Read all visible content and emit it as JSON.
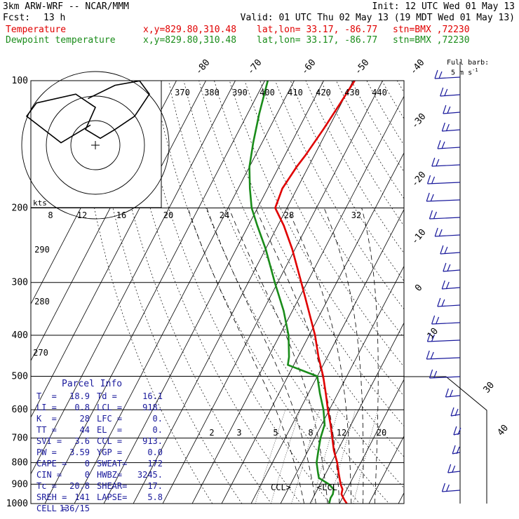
{
  "header": {
    "model": "3km ARW-WRF -- NCAR/MMM",
    "init": "Init: 12 UTC Wed 01 May 13",
    "fcst_label": "Fcst:",
    "fcst_value": "13 h",
    "valid": "Valid: 01 UTC Thu 02 May 13 (19 MDT Wed 01 May 13)",
    "temp_line": {
      "label": "Temperature",
      "xy": "x,y=829.80,310.48",
      "latlon": "lat,lon= 33.17, -86.77",
      "stn": "stn=BMX ,72230"
    },
    "dew_line": {
      "label": "Dewpoint temperature",
      "xy": "x,y=829.80,310.48",
      "latlon": "lat,lon= 33.17, -86.77",
      "stn": "stn=BMX ,72230"
    }
  },
  "colors": {
    "temperature": "#e00000",
    "dewpoint": "#1a8c1a",
    "text": "#000000",
    "parcel_text": "#1a1a9c",
    "wind": "#1a1a9c"
  },
  "barb_legend": {
    "line1": "Full barb:",
    "line2": "5 m s",
    "sup": "-1"
  },
  "hodograph": {
    "unit": "kts",
    "speed_ticks": [
      "8",
      "12",
      "16",
      "20",
      "24",
      "28",
      "32"
    ]
  },
  "theta_labels": [
    "370",
    "380",
    "390",
    "400",
    "410",
    "420",
    "430",
    "440"
  ],
  "theta_left_labels": [
    "290",
    "280",
    "270"
  ],
  "isotherm_labels": [
    "-80",
    "-70",
    "-60",
    "-50",
    "-40",
    "-30",
    "-20",
    "-10",
    "0",
    "10",
    "30",
    "40"
  ],
  "mixing_ratio_labels": [
    "2",
    "3",
    "5",
    "8",
    "12",
    "20"
  ],
  "level_annotations": {
    "ccl": "CCL>",
    "lcl": "<LCL"
  },
  "parcel": {
    "title": "Parcel Info",
    "rows": [
      [
        "T  =",
        "18.9",
        "Td =",
        "16.1"
      ],
      [
        "LI =",
        "0.8",
        "LCL =",
        "918."
      ],
      [
        "K  =",
        "28",
        "LFC =",
        "0."
      ],
      [
        "TT =",
        "44",
        "EL  =",
        "0."
      ],
      [
        "SVI =",
        "3.6",
        "CCL =",
        "913."
      ],
      [
        "PW =",
        "3.59",
        "YGP =",
        "0.0"
      ],
      [
        "CAPE =",
        "0",
        "SWEAT=",
        "172"
      ],
      [
        "CIN =",
        "0",
        "HWBZ=",
        "3245."
      ],
      [
        "Tc =",
        "20.8",
        "SHEAR=",
        "17."
      ],
      [
        "SREH =",
        "141",
        "LAPSE=",
        "5.8"
      ],
      [
        "CELL =",
        "136/15",
        "",
        ""
      ]
    ]
  },
  "chart_data": {
    "type": "line",
    "title": "",
    "ylabel": "",
    "y_scale": "log-pressure",
    "ylim": [
      1000,
      100
    ],
    "y_ticks": [
      100,
      200,
      300,
      400,
      500,
      600,
      700,
      800,
      900,
      1000
    ],
    "series": [
      {
        "name": "Temperature",
        "color": "#e00000",
        "points": [
          [
            1000,
            22.5
          ],
          [
            980,
            21.0
          ],
          [
            950,
            19.0
          ],
          [
            925,
            18.5
          ],
          [
            900,
            17.0
          ],
          [
            850,
            14.5
          ],
          [
            800,
            12.0
          ],
          [
            750,
            8.8
          ],
          [
            700,
            6.0
          ],
          [
            650,
            3.0
          ],
          [
            600,
            -0.5
          ],
          [
            550,
            -4.0
          ],
          [
            500,
            -8.0
          ],
          [
            450,
            -13.0
          ],
          [
            400,
            -18.0
          ],
          [
            350,
            -24.5
          ],
          [
            300,
            -32.0
          ],
          [
            250,
            -41.0
          ],
          [
            220,
            -48.0
          ],
          [
            200,
            -54.0
          ],
          [
            180,
            -55.0
          ],
          [
            160,
            -54.0
          ],
          [
            150,
            -53.0
          ],
          [
            130,
            -51.5
          ],
          [
            115,
            -50.5
          ],
          [
            100,
            -49.5
          ]
        ]
      },
      {
        "name": "Dewpoint temperature",
        "color": "#1a8c1a",
        "points": [
          [
            1000,
            16.5
          ],
          [
            970,
            16.0
          ],
          [
            950,
            16.1
          ],
          [
            925,
            15.5
          ],
          [
            900,
            13.0
          ],
          [
            870,
            8.5
          ],
          [
            850,
            7.5
          ],
          [
            800,
            5.0
          ],
          [
            750,
            3.5
          ],
          [
            700,
            2.0
          ],
          [
            650,
            1.0
          ],
          [
            600,
            -2.0
          ],
          [
            550,
            -6.0
          ],
          [
            500,
            -10.0
          ],
          [
            470,
            -22.0
          ],
          [
            450,
            -23.0
          ],
          [
            400,
            -27.0
          ],
          [
            350,
            -33.0
          ],
          [
            300,
            -41.0
          ],
          [
            250,
            -50.0
          ],
          [
            220,
            -57.0
          ],
          [
            200,
            -62.0
          ],
          [
            180,
            -66.0
          ],
          [
            160,
            -70.0
          ],
          [
            140,
            -73.0
          ],
          [
            120,
            -76.0
          ],
          [
            100,
            -79.0
          ]
        ]
      }
    ],
    "hodograph_trace": [
      [
        -3,
        10
      ],
      [
        8,
        16
      ],
      [
        18,
        18
      ],
      [
        22,
        12
      ],
      [
        16,
        2
      ],
      [
        8,
        -4
      ],
      [
        2,
        -8
      ],
      [
        -4,
        -4
      ],
      [
        0,
        6
      ],
      [
        -8,
        12
      ],
      [
        -24,
        8
      ],
      [
        -28,
        2
      ],
      [
        -14,
        -10
      ],
      [
        -2,
        -2
      ]
    ]
  }
}
